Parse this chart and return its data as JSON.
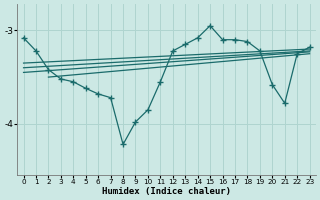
{
  "xlabel": "Humidex (Indice chaleur)",
  "bg_color": "#cce8e4",
  "line_color": "#1a6b6b",
  "grid_color": "#afd4cf",
  "xlim": [
    -0.5,
    23.5
  ],
  "ylim": [
    -4.55,
    -2.72
  ],
  "yticks": [
    -4,
    -3
  ],
  "xticks": [
    0,
    1,
    2,
    3,
    4,
    5,
    6,
    7,
    8,
    9,
    10,
    11,
    12,
    13,
    14,
    15,
    16,
    17,
    18,
    19,
    20,
    21,
    22,
    23
  ],
  "main_x": [
    0,
    1,
    2,
    3,
    4,
    5,
    6,
    7,
    8,
    9,
    10,
    11,
    12,
    13,
    14,
    15,
    16,
    17,
    18,
    19,
    20,
    21,
    22,
    23
  ],
  "main_y": [
    -3.08,
    -3.22,
    -3.42,
    -3.52,
    -3.55,
    -3.62,
    -3.68,
    -3.72,
    -4.22,
    -3.98,
    -3.85,
    -3.55,
    -3.22,
    -3.15,
    -3.08,
    -2.95,
    -3.1,
    -3.1,
    -3.12,
    -3.22,
    -3.58,
    -3.78,
    -3.25,
    -3.18
  ],
  "trend_lines": [
    {
      "x": [
        0,
        23
      ],
      "y": [
        -3.35,
        -3.2
      ]
    },
    {
      "x": [
        0,
        23
      ],
      "y": [
        -3.4,
        -3.22
      ]
    },
    {
      "x": [
        0,
        23
      ],
      "y": [
        -3.45,
        -3.23
      ]
    },
    {
      "x": [
        2,
        23
      ],
      "y": [
        -3.5,
        -3.25
      ]
    }
  ]
}
